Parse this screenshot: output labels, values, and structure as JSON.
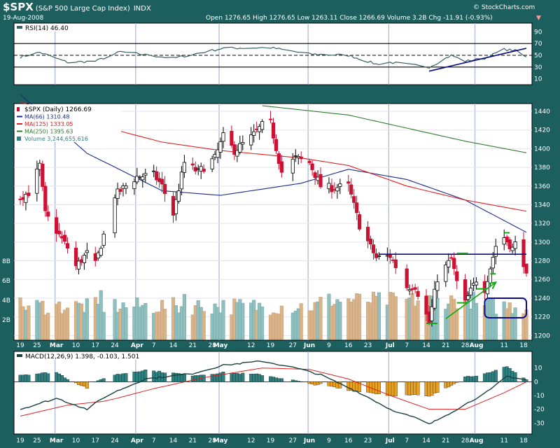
{
  "header": {
    "symbol": "$SPX",
    "name": "(S&P 500 Large Cap Index)",
    "exchange": "INDX",
    "date": "19-Aug-2008",
    "brand": "© StockCharts.com",
    "quote": "Open 1276.65  High 1276.65  Low 1263.11  Close 1266.69  Volume 3.2B  Chg -11.91 (-0.93%)",
    "quote_arrow": "▼"
  },
  "colors": {
    "background": "#1d5f5f",
    "panel": "#ffffff",
    "up": "#ffffff",
    "down": "#cc1133",
    "ma66": "#1a2a8a",
    "ma125": "#dd2222",
    "ma250": "#2a7a2a",
    "volume_up": "#8fbfbf",
    "volume_down": "#d9b48a",
    "rsi": "#355f5f",
    "macd": "#1a3f3f",
    "signal": "#dd2222",
    "hist_pos": "#2f8080",
    "hist_neg": "#e8a020",
    "trend_blue": "#0a0a8a",
    "trend_green": "#11aa11"
  },
  "rsi_panel": {
    "label": "RSI(14) 46.40",
    "ticks": [
      "90",
      "70",
      "50",
      "30",
      "10"
    ]
  },
  "price_panel": {
    "legend": [
      {
        "text": "$SPX (Daily) 1266.69",
        "key": "price"
      },
      {
        "text": "MA(66) 1310.48",
        "key": "ma66"
      },
      {
        "text": "MA(125) 1333.05",
        "key": "ma125"
      },
      {
        "text": "MA(250) 1395.63",
        "key": "ma250"
      },
      {
        "text": "Volume 3,244,655,616",
        "key": "volume"
      }
    ],
    "ticks": [
      "1440",
      "1420",
      "1400",
      "1380",
      "1360",
      "1340",
      "1320",
      "1300",
      "1280",
      "1260",
      "1240",
      "1220",
      "1200"
    ],
    "volume_ticks": [
      "8B",
      "6B",
      "4B",
      "2B"
    ]
  },
  "macd_panel": {
    "label": "MACD(12,26,9) 1.398, -0.103, 1.501",
    "ticks": [
      "10",
      "0",
      "-10",
      "-20",
      "-30"
    ]
  },
  "x_axis": {
    "labels": [
      "19",
      "25",
      "Mar",
      "10",
      "17",
      "24",
      "Apr",
      "7",
      "14",
      "21",
      "28",
      "May",
      "12",
      "19",
      "27",
      "Jun",
      "9",
      "16",
      "23",
      "Jul",
      "7",
      "14",
      "21",
      "28",
      "Aug",
      "11",
      "18"
    ],
    "bold": [
      "Mar",
      "Apr",
      "May",
      "Jun",
      "Jul",
      "Aug"
    ]
  },
  "chart_data": {
    "type": "candlestick",
    "title": "$SPX (S&P 500 Large Cap Index) INDX",
    "date_range": [
      "2008-02-19",
      "2008-08-19"
    ],
    "ylim": [
      1195,
      1450
    ],
    "price_anchors": [
      [
        "2008-02-19",
        1348
      ],
      [
        "2008-02-22",
        1353
      ],
      [
        "2008-02-26",
        1382
      ],
      [
        "2008-02-28",
        1330
      ],
      [
        "2008-03-07",
        1294
      ],
      [
        "2008-03-10",
        1274
      ],
      [
        "2008-03-14",
        1288
      ],
      [
        "2008-03-17",
        1276
      ],
      [
        "2008-03-24",
        1350
      ],
      [
        "2008-04-01",
        1370
      ],
      [
        "2008-04-07",
        1372
      ],
      [
        "2008-04-10",
        1360
      ],
      [
        "2008-04-14",
        1330
      ],
      [
        "2008-04-18",
        1385
      ],
      [
        "2008-04-23",
        1375
      ],
      [
        "2008-04-29",
        1390
      ],
      [
        "2008-05-02",
        1413
      ],
      [
        "2008-05-06",
        1398
      ],
      [
        "2008-05-12",
        1412
      ],
      [
        "2008-05-16",
        1425
      ],
      [
        "2008-05-19",
        1427
      ],
      [
        "2008-05-23",
        1375
      ],
      [
        "2008-05-28",
        1390
      ],
      [
        "2008-06-02",
        1385
      ],
      [
        "2008-06-06",
        1360
      ],
      [
        "2008-06-10",
        1358
      ],
      [
        "2008-06-16",
        1360
      ],
      [
        "2008-06-20",
        1318
      ],
      [
        "2008-06-26",
        1283
      ],
      [
        "2008-07-01",
        1285
      ],
      [
        "2008-07-07",
        1252
      ],
      [
        "2008-07-10",
        1253
      ],
      [
        "2008-07-15",
        1214
      ],
      [
        "2008-07-18",
        1261
      ],
      [
        "2008-07-23",
        1282
      ],
      [
        "2008-07-25",
        1257
      ],
      [
        "2008-07-28",
        1235
      ],
      [
        "2008-08-01",
        1260
      ],
      [
        "2008-08-04",
        1250
      ],
      [
        "2008-08-08",
        1296
      ],
      [
        "2008-08-11",
        1305
      ],
      [
        "2008-08-14",
        1293
      ],
      [
        "2008-08-15",
        1298
      ],
      [
        "2008-08-18",
        1278
      ],
      [
        "2008-08-19",
        1266.69
      ]
    ],
    "ma66": [
      [
        "2008-02-19",
        1458
      ],
      [
        "2008-03-14",
        1395
      ],
      [
        "2008-04-10",
        1355
      ],
      [
        "2008-05-01",
        1350
      ],
      [
        "2008-05-30",
        1363
      ],
      [
        "2008-06-16",
        1378
      ],
      [
        "2008-07-07",
        1367
      ],
      [
        "2008-07-28",
        1345
      ],
      [
        "2008-08-19",
        1310.48
      ]
    ],
    "ma125": [
      [
        "2008-02-19",
        1450
      ],
      [
        "2008-03-14",
        1428
      ],
      [
        "2008-04-10",
        1407
      ],
      [
        "2008-05-01",
        1398
      ],
      [
        "2008-05-30",
        1390
      ],
      [
        "2008-06-16",
        1382
      ],
      [
        "2008-07-07",
        1360
      ],
      [
        "2008-07-28",
        1345
      ],
      [
        "2008-08-19",
        1333.05
      ]
    ],
    "ma250": [
      [
        "2008-05-16",
        1446
      ],
      [
        "2008-06-16",
        1436
      ],
      [
        "2008-07-07",
        1422
      ],
      [
        "2008-07-28",
        1408
      ],
      [
        "2008-08-19",
        1395.63
      ]
    ],
    "rsi_anchors": [
      [
        "2008-02-19",
        47
      ],
      [
        "2008-02-26",
        55
      ],
      [
        "2008-03-07",
        38
      ],
      [
        "2008-03-17",
        40
      ],
      [
        "2008-03-26",
        56
      ],
      [
        "2008-04-14",
        45
      ],
      [
        "2008-05-02",
        62
      ],
      [
        "2008-05-19",
        63
      ],
      [
        "2008-06-02",
        52
      ],
      [
        "2008-06-16",
        50
      ],
      [
        "2008-06-26",
        35
      ],
      [
        "2008-07-01",
        38
      ],
      [
        "2008-07-15",
        30
      ],
      [
        "2008-07-23",
        50
      ],
      [
        "2008-07-28",
        40
      ],
      [
        "2008-08-04",
        45
      ],
      [
        "2008-08-11",
        60
      ],
      [
        "2008-08-15",
        58
      ],
      [
        "2008-08-19",
        46.4
      ]
    ],
    "macd_anchors": [
      [
        "2008-02-19",
        -20
      ],
      [
        "2008-03-03",
        -12
      ],
      [
        "2008-03-14",
        -20
      ],
      [
        "2008-03-21",
        -10
      ],
      [
        "2008-04-04",
        2
      ],
      [
        "2008-04-21",
        6
      ],
      [
        "2008-05-02",
        12
      ],
      [
        "2008-05-16",
        15
      ],
      [
        "2008-05-28",
        10
      ],
      [
        "2008-06-06",
        5
      ],
      [
        "2008-06-20",
        -8
      ],
      [
        "2008-07-01",
        -20
      ],
      [
        "2008-07-11",
        -27
      ],
      [
        "2008-07-15",
        -31
      ],
      [
        "2008-07-25",
        -20
      ],
      [
        "2008-08-06",
        -6
      ],
      [
        "2008-08-12",
        4
      ],
      [
        "2008-08-19",
        1.398
      ]
    ],
    "signal_anchors": [
      [
        "2008-02-19",
        -25
      ],
      [
        "2008-03-07",
        -17
      ],
      [
        "2008-03-21",
        -14
      ],
      [
        "2008-04-07",
        -5
      ],
      [
        "2008-04-25",
        3
      ],
      [
        "2008-05-16",
        10
      ],
      [
        "2008-06-02",
        9
      ],
      [
        "2008-06-16",
        2
      ],
      [
        "2008-07-01",
        -10
      ],
      [
        "2008-07-15",
        -20
      ],
      [
        "2008-07-28",
        -20
      ],
      [
        "2008-08-11",
        -8
      ],
      [
        "2008-08-19",
        -0.103
      ]
    ],
    "volume_scale_max_billions": 8,
    "annotations": [
      {
        "type": "trendline",
        "panel": "rsi",
        "color": "trend_blue",
        "from": [
          "2008-07-15",
          23
        ],
        "to": [
          "2008-08-19",
          62
        ]
      },
      {
        "type": "hline",
        "panel": "price",
        "color": "trend_blue",
        "from": [
          "2008-06-27",
          1287
        ],
        "to": [
          "2008-08-19",
          1287
        ]
      },
      {
        "type": "segment",
        "panel": "price",
        "color": "trend_green",
        "from": [
          "2008-07-14",
          1213
        ],
        "to": [
          "2008-07-18",
          1213
        ]
      },
      {
        "type": "segment",
        "panel": "price",
        "color": "trend_green",
        "from": [
          "2008-07-25",
          1235
        ],
        "to": [
          "2008-07-29",
          1235
        ]
      },
      {
        "type": "segment",
        "panel": "price",
        "color": "trend_green",
        "from": [
          "2008-08-01",
          1250
        ],
        "to": [
          "2008-08-05",
          1250
        ]
      },
      {
        "type": "segment",
        "panel": "price",
        "color": "trend_green",
        "from": [
          "2008-08-06",
          1266
        ],
        "to": [
          "2008-08-08",
          1266
        ]
      },
      {
        "type": "segment",
        "panel": "price",
        "color": "trend_green",
        "from": [
          "2008-08-11",
          1310
        ],
        "to": [
          "2008-08-13",
          1310
        ]
      },
      {
        "type": "segment",
        "panel": "price",
        "color": "trend_green",
        "from": [
          "2008-07-25",
          1288
        ],
        "to": [
          "2008-07-29",
          1288
        ]
      },
      {
        "type": "arrow",
        "panel": "price",
        "color": "trend_green",
        "from": [
          "2008-07-21",
          1218
        ],
        "to": [
          "2008-08-08",
          1257
        ]
      },
      {
        "type": "box",
        "panel": "price",
        "color": "trend_blue",
        "from": [
          "2008-08-04",
          1240
        ],
        "to": [
          "2008-08-19",
          1219
        ]
      }
    ]
  }
}
